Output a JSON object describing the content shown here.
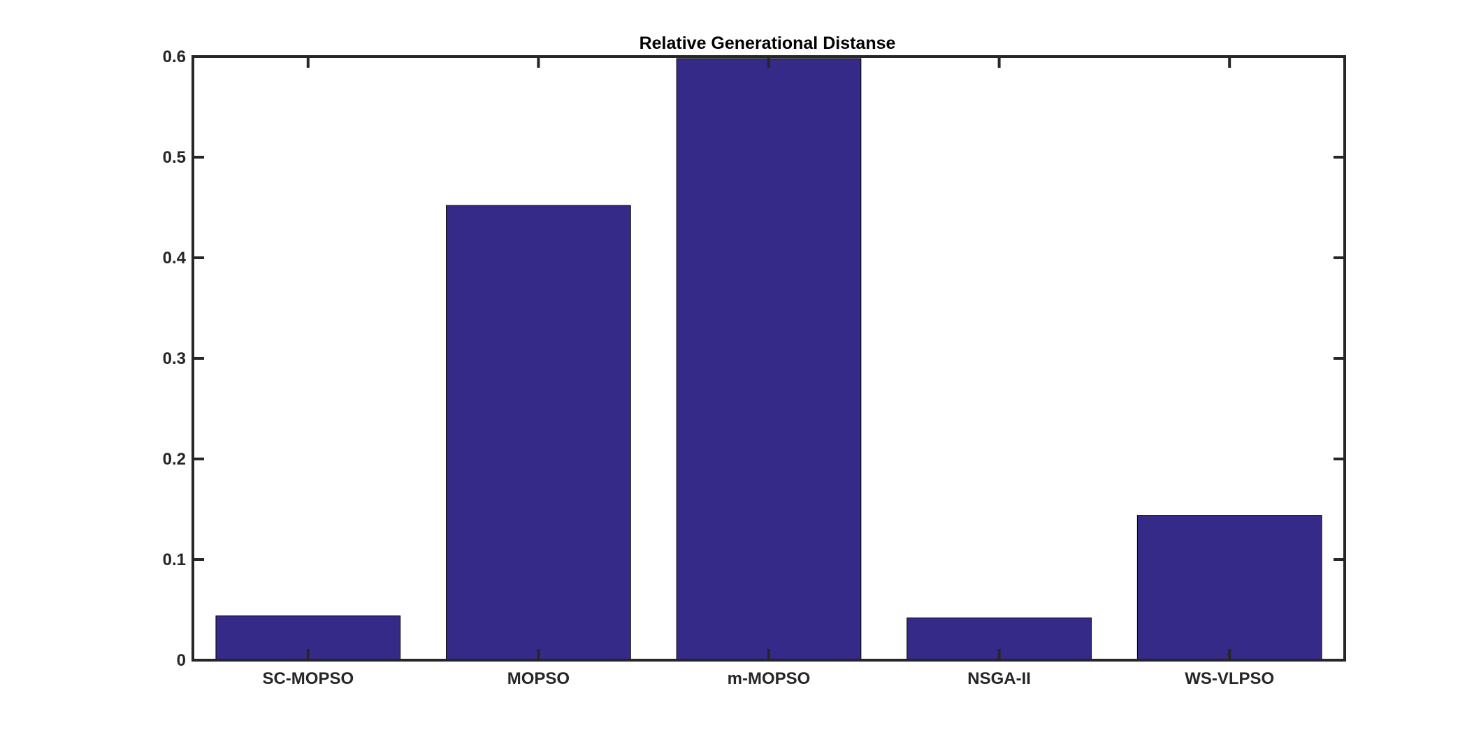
{
  "chart_data": {
    "type": "bar",
    "title": "Relative Generational Distanse",
    "xlabel": "",
    "ylabel": "",
    "categories": [
      "SC-MOPSO",
      "MOPSO",
      "m-MOPSO",
      "NSGA-II",
      "WS-VLPSO"
    ],
    "values": [
      0.044,
      0.452,
      0.598,
      0.042,
      0.144
    ],
    "ylim": [
      0,
      0.6
    ],
    "yticks": [
      "0",
      "0.1",
      "0.2",
      "0.3",
      "0.4",
      "0.5",
      "0.6"
    ],
    "grid": false,
    "legend": "none",
    "colors": {
      "bar": "#352a87",
      "axis": "#262626"
    }
  }
}
